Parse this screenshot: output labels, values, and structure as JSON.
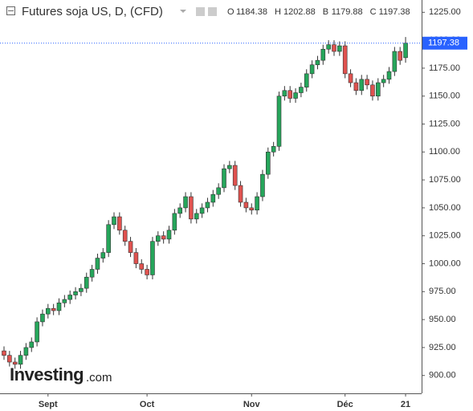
{
  "chart_data": {
    "type": "candlestick",
    "title": "Futures soja US, D, (CFD)",
    "ohlc_labels": {
      "open": "O",
      "high": "H",
      "low": "B",
      "close": "C"
    },
    "watermark": [
      "Investing",
      ".com"
    ],
    "categories": [
      null,
      null,
      null,
      null,
      null,
      null,
      null,
      null,
      "Sept",
      null,
      null,
      null,
      null,
      null,
      null,
      null,
      null,
      null,
      null,
      null,
      null,
      null,
      null,
      null,
      null,
      null,
      "Oct",
      null,
      null,
      null,
      null,
      null,
      null,
      null,
      null,
      null,
      null,
      null,
      null,
      null,
      null,
      null,
      null,
      null,
      null,
      "Nov",
      null,
      null,
      null,
      null,
      null,
      null,
      null,
      null,
      null,
      null,
      null,
      null,
      null,
      null,
      null,
      null,
      "Déc",
      null,
      null,
      null,
      null,
      null,
      null,
      null,
      null,
      null,
      null,
      "21"
    ],
    "open": [
      922,
      918,
      912,
      910,
      918,
      925,
      930,
      948,
      955,
      960,
      958,
      965,
      968,
      972,
      975,
      978,
      988,
      995,
      1005,
      1010,
      1035,
      1042,
      1030,
      1020,
      1010,
      1000,
      995,
      990,
      1020,
      1025,
      1022,
      1030,
      1045,
      1050,
      1060,
      1040,
      1045,
      1050,
      1055,
      1062,
      1068,
      1085,
      1088,
      1070,
      1055,
      1050,
      1048,
      1060,
      1080,
      1100,
      1105,
      1150,
      1155,
      1148,
      1153,
      1158,
      1170,
      1178,
      1182,
      1192,
      1196,
      1190,
      1195,
      1170,
      1162,
      1155,
      1165,
      1160,
      1150,
      1162,
      1165,
      1172,
      1190,
      1184.38
    ],
    "high": [
      926,
      922,
      916,
      922,
      929,
      934,
      952,
      959,
      964,
      964,
      969,
      972,
      976,
      979,
      982,
      992,
      999,
      1009,
      1014,
      1039,
      1046,
      1046,
      1034,
      1024,
      1014,
      1004,
      999,
      1024,
      1029,
      1029,
      1034,
      1049,
      1054,
      1064,
      1064,
      1049,
      1054,
      1059,
      1066,
      1072,
      1089,
      1092,
      1092,
      1074,
      1059,
      1054,
      1064,
      1084,
      1104,
      1109,
      1154,
      1159,
      1159,
      1157,
      1162,
      1174,
      1182,
      1186,
      1196,
      1200,
      1200,
      1199,
      1199,
      1174,
      1166,
      1169,
      1169,
      1164,
      1166,
      1169,
      1176,
      1194,
      1194,
      1202.88
    ],
    "low": [
      914,
      908,
      906,
      906,
      914,
      921,
      926,
      944,
      951,
      954,
      954,
      961,
      964,
      968,
      971,
      974,
      984,
      991,
      1001,
      1006,
      1031,
      1026,
      1016,
      1006,
      996,
      991,
      986,
      986,
      1016,
      1018,
      1018,
      1026,
      1041,
      1046,
      1036,
      1036,
      1041,
      1046,
      1051,
      1058,
      1064,
      1081,
      1066,
      1051,
      1046,
      1044,
      1044,
      1056,
      1076,
      1096,
      1101,
      1146,
      1144,
      1144,
      1149,
      1154,
      1166,
      1174,
      1178,
      1188,
      1186,
      1186,
      1166,
      1158,
      1151,
      1151,
      1156,
      1146,
      1146,
      1158,
      1161,
      1168,
      1178,
      1179.88
    ],
    "close": [
      918,
      912,
      910,
      918,
      925,
      930,
      948,
      955,
      960,
      958,
      965,
      968,
      972,
      975,
      978,
      988,
      995,
      1005,
      1010,
      1035,
      1042,
      1030,
      1020,
      1010,
      1000,
      995,
      990,
      1020,
      1025,
      1022,
      1030,
      1045,
      1050,
      1060,
      1040,
      1045,
      1050,
      1055,
      1062,
      1068,
      1085,
      1088,
      1070,
      1055,
      1050,
      1048,
      1060,
      1080,
      1100,
      1105,
      1150,
      1155,
      1148,
      1153,
      1158,
      1170,
      1178,
      1182,
      1192,
      1196,
      1190,
      1195,
      1170,
      1162,
      1155,
      1165,
      1160,
      1150,
      1162,
      1165,
      1172,
      1190,
      1182,
      1197.38
    ],
    "up_color": "#26a65b",
    "down_color": "#e0524f",
    "price_line_color": "#2962ff",
    "ylim": [
      884,
      1236
    ],
    "yticks": [
      {
        "value": 900,
        "label": "900.00"
      },
      {
        "value": 925,
        "label": "925.00"
      },
      {
        "value": 950,
        "label": "950.00"
      },
      {
        "value": 975,
        "label": "975.00"
      },
      {
        "value": 1000,
        "label": "1000.00"
      },
      {
        "value": 1025,
        "label": "1025.00"
      },
      {
        "value": 1050,
        "label": "1050.00"
      },
      {
        "value": 1075,
        "label": "1075.00"
      },
      {
        "value": 1100,
        "label": "1100.00"
      },
      {
        "value": 1125,
        "label": "1125.00"
      },
      {
        "value": 1150,
        "label": "1150.00"
      },
      {
        "value": 1175,
        "label": "1175.00"
      },
      {
        "value": 1200,
        "label": "1200.00"
      },
      {
        "value": 1225,
        "label": "1225.00"
      }
    ]
  }
}
